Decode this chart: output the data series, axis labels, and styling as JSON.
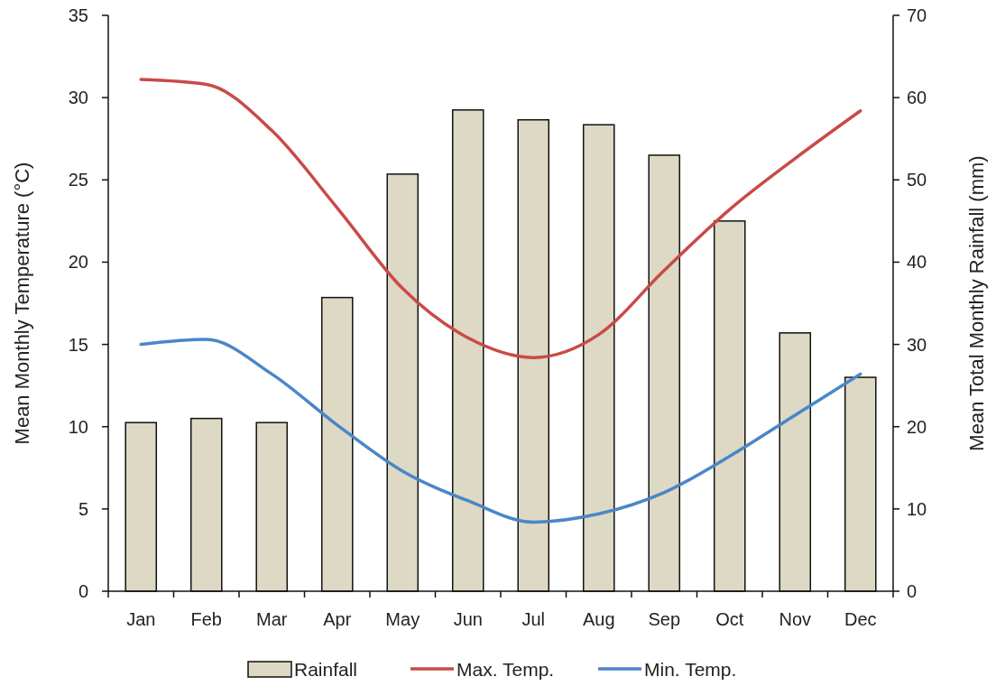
{
  "chart_data": {
    "type": "bar",
    "categories": [
      "Jan",
      "Feb",
      "Mar",
      "Apr",
      "May",
      "Jun",
      "Jul",
      "Aug",
      "Sep",
      "Oct",
      "Nov",
      "Dec"
    ],
    "ylabel": "Mean Monthly Temperature (°C)",
    "y2label": "Mean Total Monthly Rainfall (mm)",
    "ylim": [
      0,
      35
    ],
    "yticks": [
      0,
      5,
      10,
      15,
      20,
      25,
      30,
      35
    ],
    "y2lim": [
      0,
      70
    ],
    "y2ticks": [
      0,
      10,
      20,
      30,
      40,
      50,
      60,
      70
    ],
    "legend": "bottom",
    "grid": false,
    "marker": "none",
    "line_style": "solid",
    "series": [
      {
        "name": "Rainfall",
        "axis": "y2",
        "color": "#ddd9c4",
        "values": [
          20.5,
          21.0,
          20.5,
          35.7,
          50.7,
          58.5,
          57.3,
          56.7,
          53.0,
          45.0,
          31.4,
          26.0
        ]
      },
      {
        "name": "Max. Temp.",
        "type": "line",
        "color": "#c94a47",
        "values": [
          31.1,
          30.8,
          28.0,
          23.3,
          18.4,
          15.4,
          14.2,
          15.6,
          19.5,
          23.2,
          26.3,
          29.2
        ]
      },
      {
        "name": "Min. Temp.",
        "type": "line",
        "color": "#4a86c8",
        "values": [
          15.0,
          15.3,
          13.2,
          10.1,
          7.3,
          5.5,
          4.2,
          4.7,
          6.0,
          8.2,
          10.7,
          13.2
        ]
      }
    ]
  }
}
